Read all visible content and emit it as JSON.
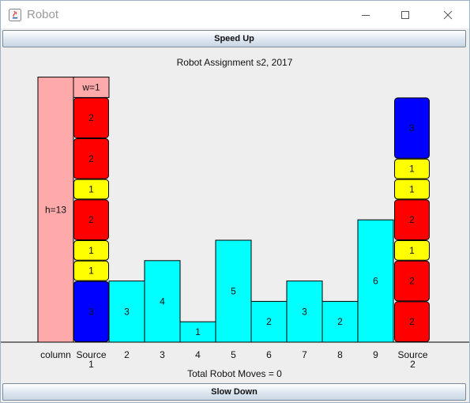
{
  "window": {
    "title": "Robot",
    "controls": [
      "minimize",
      "maximize",
      "close"
    ]
  },
  "buttons": {
    "speed_up": "Speed Up",
    "slow_down": "Slow Down"
  },
  "canvas": {
    "heading": "Robot Assignment s2, 2017",
    "status": "Total Robot Moves = 0"
  },
  "column": {
    "label": "column",
    "height_label": "h=13",
    "width_label": "w=1",
    "color": "#ffaaaa"
  },
  "colors": {
    "block_1": "#ffff00",
    "block_2": "#ff0000",
    "block_3": "#0000ff",
    "bar": "#00ffff"
  },
  "source1": {
    "label_line1": "Source",
    "label_line2": "1",
    "blocks_bottom_to_top": [
      3,
      1,
      1,
      2,
      1,
      2,
      2
    ]
  },
  "source2": {
    "label_line1": "Source",
    "label_line2": "2",
    "blocks_bottom_to_top": [
      2,
      2,
      1,
      2,
      1,
      1,
      3
    ]
  },
  "bars": [
    {
      "label": "2",
      "height": 3
    },
    {
      "label": "3",
      "height": 4
    },
    {
      "label": "4",
      "height": 1
    },
    {
      "label": "5",
      "height": 5
    },
    {
      "label": "6",
      "height": 2
    },
    {
      "label": "7",
      "height": 3
    },
    {
      "label": "8",
      "height": 2
    },
    {
      "label": "9",
      "height": 6
    }
  ]
}
